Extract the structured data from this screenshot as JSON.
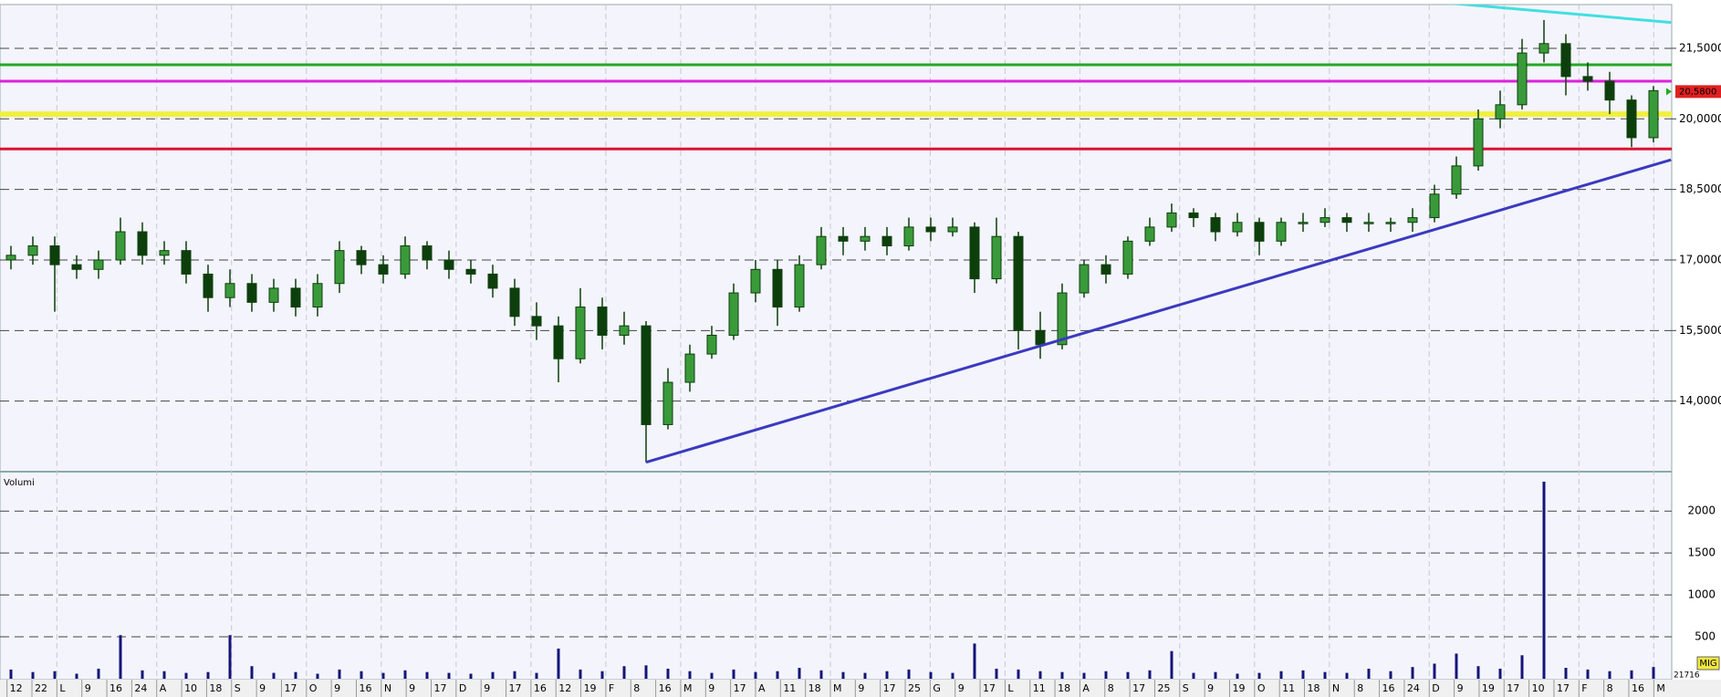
{
  "chart_data": {
    "type": "candlestick",
    "candles": {
      "open": [
        17.0,
        17.1,
        17.3,
        16.9,
        16.8,
        17.0,
        17.6,
        17.1,
        17.2,
        16.7,
        16.2,
        16.5,
        16.1,
        16.4,
        16.0,
        16.5,
        17.2,
        16.9,
        16.7,
        17.3,
        17.0,
        16.8,
        16.7,
        16.4,
        15.8,
        15.6,
        14.9,
        16.0,
        15.4,
        15.6,
        13.5,
        14.4,
        15.0,
        15.4,
        16.3,
        16.8,
        16.0,
        16.9,
        17.5,
        17.4,
        17.5,
        17.3,
        17.7,
        17.6,
        17.7,
        16.6,
        17.5,
        15.5,
        15.2,
        16.3,
        16.9,
        16.7,
        17.4,
        17.7,
        18.0,
        17.9,
        17.6,
        17.8,
        17.4,
        17.8,
        17.8,
        17.9,
        17.8,
        17.8,
        17.8,
        17.9,
        18.4,
        19.0,
        20.0,
        20.3,
        21.4,
        21.6,
        20.9,
        20.8,
        20.4,
        19.6
      ],
      "high": [
        17.3,
        17.5,
        17.5,
        17.1,
        17.2,
        17.9,
        17.8,
        17.4,
        17.4,
        16.9,
        16.8,
        16.7,
        16.6,
        16.6,
        16.7,
        17.4,
        17.3,
        17.1,
        17.5,
        17.4,
        17.2,
        17.0,
        16.9,
        16.6,
        16.1,
        15.8,
        16.4,
        16.2,
        15.9,
        15.7,
        14.7,
        15.2,
        15.6,
        16.5,
        17.0,
        17.0,
        17.1,
        17.7,
        17.7,
        17.7,
        17.7,
        17.9,
        17.9,
        17.9,
        17.8,
        17.9,
        17.6,
        15.9,
        16.5,
        17.0,
        17.1,
        17.5,
        17.9,
        18.2,
        18.1,
        18.0,
        18.0,
        17.9,
        17.9,
        18.0,
        18.1,
        18.0,
        18.0,
        17.9,
        18.1,
        18.6,
        19.2,
        20.2,
        20.6,
        21.7,
        22.1,
        21.8,
        21.2,
        21.0,
        20.5,
        20.7
      ],
      "low": [
        16.8,
        16.9,
        15.9,
        16.6,
        16.6,
        16.9,
        16.9,
        16.9,
        16.5,
        15.9,
        16.0,
        15.9,
        15.9,
        15.8,
        15.8,
        16.3,
        16.7,
        16.5,
        16.6,
        16.8,
        16.6,
        16.5,
        16.2,
        15.6,
        15.3,
        14.4,
        14.8,
        15.1,
        15.2,
        12.7,
        13.4,
        14.2,
        14.9,
        15.3,
        16.1,
        15.6,
        15.9,
        16.8,
        17.1,
        17.2,
        17.1,
        17.2,
        17.4,
        17.5,
        16.3,
        16.5,
        15.1,
        14.9,
        15.1,
        16.2,
        16.5,
        16.6,
        17.3,
        17.6,
        17.7,
        17.4,
        17.5,
        17.1,
        17.3,
        17.6,
        17.7,
        17.6,
        17.6,
        17.6,
        17.6,
        17.8,
        18.3,
        18.9,
        19.8,
        20.2,
        21.2,
        20.5,
        20.6,
        20.1,
        19.4,
        19.5
      ],
      "close": [
        17.1,
        17.3,
        16.9,
        16.8,
        17.0,
        17.6,
        17.1,
        17.2,
        16.7,
        16.2,
        16.5,
        16.1,
        16.4,
        16.0,
        16.5,
        17.2,
        16.9,
        16.7,
        17.3,
        17.0,
        16.8,
        16.7,
        16.4,
        15.8,
        15.6,
        14.9,
        16.0,
        15.4,
        15.6,
        13.5,
        14.4,
        15.0,
        15.4,
        16.3,
        16.8,
        16.0,
        16.9,
        17.5,
        17.4,
        17.5,
        17.3,
        17.7,
        17.6,
        17.7,
        16.6,
        17.5,
        15.5,
        15.2,
        16.3,
        16.9,
        16.7,
        17.4,
        17.7,
        18.0,
        17.9,
        17.6,
        17.8,
        17.4,
        17.8,
        17.8,
        17.9,
        17.8,
        17.8,
        17.8,
        17.9,
        18.4,
        19.0,
        20.0,
        20.3,
        21.4,
        21.6,
        20.9,
        20.8,
        20.4,
        19.6,
        20.6
      ],
      "up_color": "#3a9a3a",
      "down_color": "#0d3f0d"
    },
    "ylim": [
      12.5,
      22.43
    ],
    "yticks": [
      {
        "value": 14,
        "label": "14,0000"
      },
      {
        "value": 15.5,
        "label": "15,5000"
      },
      {
        "value": 17,
        "label": "17,0000"
      },
      {
        "value": 18.5,
        "label": "18,5000"
      },
      {
        "value": 20,
        "label": "20,0000"
      },
      {
        "value": 21.5,
        "label": "21,5000"
      }
    ],
    "last_price": {
      "value": 20.58,
      "label": "20,5800",
      "color": "#e02020"
    },
    "levels": [
      {
        "value": 21.15,
        "color": "#22aa22"
      },
      {
        "value": 20.8,
        "color": "#dd22dd"
      },
      {
        "value": 20.1,
        "color": "#f0f040"
      },
      {
        "value": 19.36,
        "color": "#dd1133"
      }
    ],
    "trendlines": [
      {
        "color": "#3a3ac0",
        "from": [
          29,
          12.7
        ],
        "to": [
          75.8,
          19.13
        ]
      },
      {
        "color": "#40e0e0",
        "from": [
          64.7,
          22.5
        ],
        "to": [
          75.8,
          22.05
        ]
      }
    ],
    "volume": {
      "name": "Volumi",
      "color": "#14147a",
      "values": [
        110,
        80,
        90,
        60,
        120,
        520,
        100,
        90,
        70,
        80,
        520,
        150,
        70,
        80,
        60,
        110,
        90,
        70,
        100,
        80,
        70,
        60,
        80,
        90,
        70,
        360,
        110,
        90,
        150,
        160,
        120,
        90,
        70,
        110,
        80,
        90,
        130,
        100,
        80,
        70,
        90,
        110,
        80,
        70,
        420,
        120,
        110,
        90,
        80,
        70,
        90,
        80,
        100,
        330,
        70,
        80,
        60,
        70,
        90,
        100,
        80,
        70,
        120,
        90,
        140,
        180,
        300,
        150,
        120,
        280,
        2350,
        130,
        110,
        90,
        100,
        140
      ],
      "ylim": [
        0,
        2470
      ],
      "yticks": [
        500,
        1000,
        1500,
        2000
      ],
      "last_label": "21716"
    },
    "badge": "MIG",
    "x_labels": [
      "12",
      "22",
      "L",
      "9",
      "16",
      "24",
      "A",
      "10",
      "18",
      "S",
      "9",
      "17",
      "O",
      "9",
      "16",
      "N",
      "9",
      "17",
      "D",
      "9",
      "17",
      {
        "label": "16",
        "color": "#cc00cc"
      },
      "12",
      "19",
      "F",
      "8",
      "16",
      "M",
      "9",
      "17",
      "A",
      "11",
      "18",
      "M",
      "9",
      "17",
      "25",
      "G",
      "9",
      "17",
      "L",
      "11",
      "18",
      "A",
      "8",
      "17",
      "25",
      "S",
      "9",
      "19",
      "O",
      "11",
      "18",
      "N",
      "8",
      "16",
      "24",
      "D",
      "9",
      "19",
      {
        "label": "17",
        "color": "#cc00cc"
      },
      "10",
      "17",
      "F",
      "8",
      "16",
      "M"
    ],
    "grid": true
  }
}
